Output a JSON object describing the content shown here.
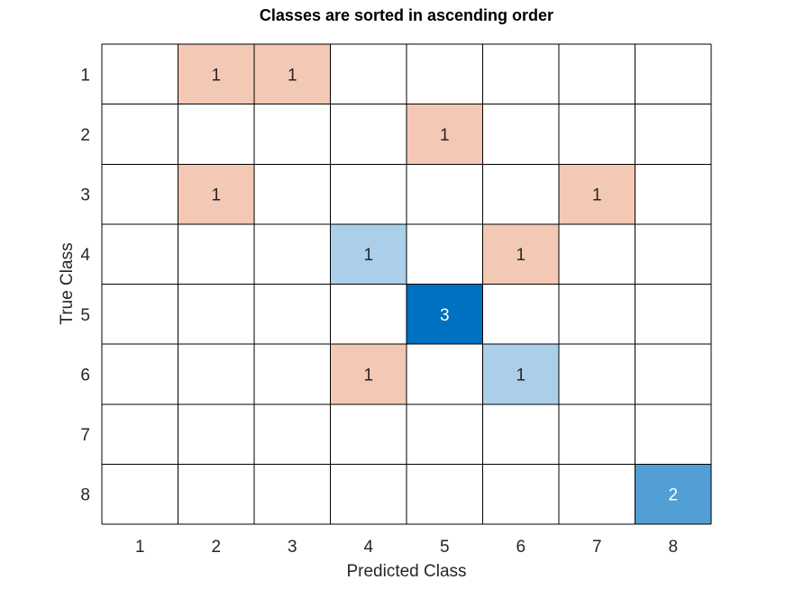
{
  "chart_data": {
    "type": "heatmap",
    "title": "Classes are sorted in ascending order",
    "xlabel": "Predicted Class",
    "ylabel": "True Class",
    "x_categories": [
      "1",
      "2",
      "3",
      "4",
      "5",
      "6",
      "7",
      "8"
    ],
    "y_categories": [
      "1",
      "2",
      "3",
      "4",
      "5",
      "6",
      "7",
      "8"
    ],
    "cells": [
      {
        "row": "1",
        "col": "2",
        "value": 1
      },
      {
        "row": "1",
        "col": "3",
        "value": 1
      },
      {
        "row": "2",
        "col": "5",
        "value": 1
      },
      {
        "row": "3",
        "col": "2",
        "value": 1
      },
      {
        "row": "3",
        "col": "7",
        "value": 1
      },
      {
        "row": "4",
        "col": "4",
        "value": 1
      },
      {
        "row": "4",
        "col": "6",
        "value": 1
      },
      {
        "row": "5",
        "col": "5",
        "value": 3
      },
      {
        "row": "6",
        "col": "4",
        "value": 1
      },
      {
        "row": "6",
        "col": "6",
        "value": 1
      },
      {
        "row": "8",
        "col": "8",
        "value": 2
      }
    ],
    "grid": true,
    "legend": "none",
    "colors": {
      "off_diagonal": "#f3c8b4",
      "diagonal_value_1": "#abcfe9",
      "diagonal_value_2": "#519fd5",
      "diagonal_value_3": "#0070c0",
      "empty": "#ffffff",
      "grid": "#000000",
      "text_dark": "#262626",
      "text_light": "#ffffff"
    }
  }
}
